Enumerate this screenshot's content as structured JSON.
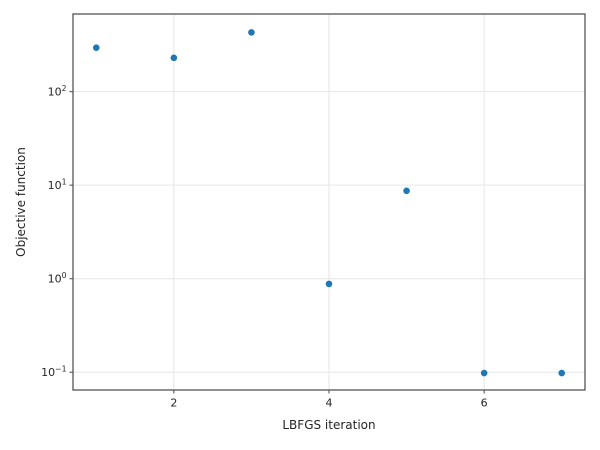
{
  "figure": {
    "background": "#ffffff"
  },
  "chart_data": {
    "type": "scatter",
    "title": "",
    "xlabel": "LBFGS iteration",
    "ylabel": "Objective function",
    "x": [
      1,
      2,
      3,
      4,
      5,
      6,
      7
    ],
    "y": [
      295,
      230,
      430,
      0.88,
      8.7,
      0.098,
      0.098
    ],
    "yscale": "log",
    "xlim": [
      0.7,
      7.3
    ],
    "ylim_log10": [
      -1.19,
      2.83
    ],
    "x_tick_values": [
      2,
      4,
      6
    ],
    "x_tick_labels": [
      "2",
      "4",
      "6"
    ],
    "y_tick_base": "10",
    "y_tick_exponents": [
      2,
      1,
      0,
      -1
    ],
    "y_tick_exp_labels": [
      "2",
      "1",
      "0",
      "−1"
    ],
    "grid": true,
    "legend_position": "none",
    "marker_radius": 3.3,
    "colors": {
      "marker": "#1f77b4",
      "grid": "#e6e6e6",
      "spine": "#555555",
      "text": "#262626"
    }
  }
}
